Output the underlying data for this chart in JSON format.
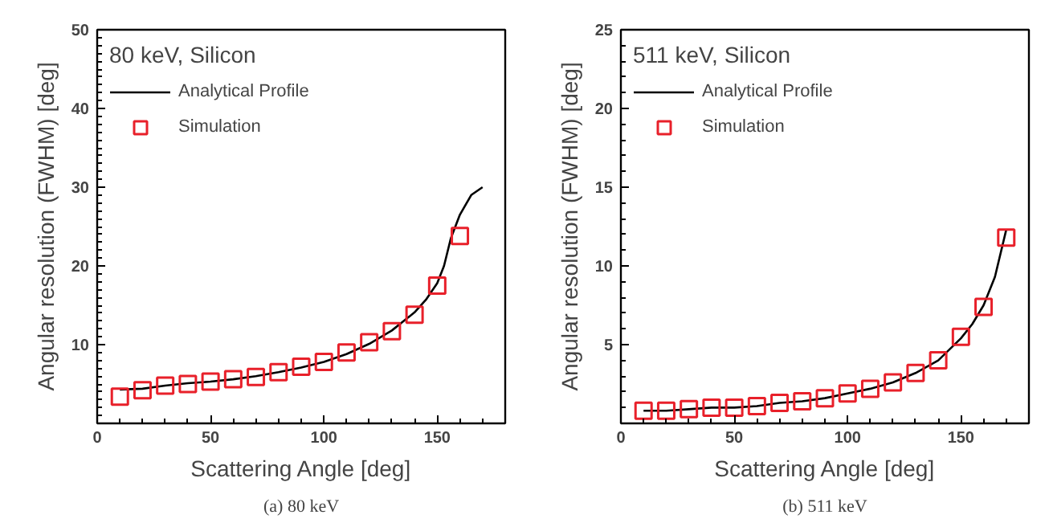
{
  "chart_data": [
    {
      "type": "line",
      "legend_title": "80 keV, Silicon",
      "xlabel": "Scattering Angle [deg]",
      "ylabel": "Angular resolution (FWHM) [deg]",
      "annotations": [
        "(a) 80 keV"
      ],
      "xlim": [
        0,
        180
      ],
      "ylim": [
        0,
        50
      ],
      "xticks": [
        0,
        50,
        100,
        150
      ],
      "yticks": [
        10,
        20,
        30,
        40,
        50
      ],
      "legend": "top left",
      "grid": false,
      "series": [
        {
          "name": "Analytical Profile",
          "color": "#000000",
          "x": [
            10,
            20,
            30,
            40,
            50,
            60,
            70,
            80,
            90,
            100,
            110,
            120,
            130,
            140,
            145,
            150,
            153,
            156,
            160,
            165,
            170
          ],
          "values": [
            4.3,
            4.4,
            4.8,
            5.1,
            5.3,
            5.6,
            6.0,
            6.5,
            7.1,
            7.8,
            8.8,
            10.1,
            11.8,
            14.1,
            15.7,
            17.8,
            20,
            23.5,
            26.5,
            29,
            30
          ]
        },
        {
          "name": "Simulation",
          "type": "scatter",
          "marker": "square",
          "color": "#e8202a",
          "x": [
            10,
            20,
            30,
            40,
            50,
            60,
            70,
            80,
            90,
            100,
            110,
            120,
            130,
            140,
            150,
            160
          ],
          "values": [
            3.4,
            4.2,
            4.8,
            5.0,
            5.3,
            5.6,
            5.9,
            6.5,
            7.2,
            7.8,
            9.0,
            10.3,
            11.7,
            13.8,
            17.5,
            23.8
          ]
        }
      ]
    },
    {
      "type": "line",
      "legend_title": "511 keV, Silicon",
      "xlabel": "Scattering Angle [deg]",
      "ylabel": "Angular resolution (FWHM) [deg]",
      "annotations": [
        "(b) 511 keV"
      ],
      "xlim": [
        0,
        180
      ],
      "ylim": [
        0,
        25
      ],
      "xticks": [
        0,
        50,
        100,
        150
      ],
      "yticks": [
        5,
        10,
        15,
        20,
        25
      ],
      "legend": "top left",
      "grid": false,
      "series": [
        {
          "name": "Analytical Profile",
          "color": "#000000",
          "x": [
            10,
            20,
            30,
            40,
            50,
            60,
            70,
            80,
            90,
            100,
            110,
            120,
            130,
            140,
            150,
            155,
            160,
            165,
            170
          ],
          "values": [
            0.8,
            0.8,
            0.9,
            1.0,
            1.0,
            1.1,
            1.3,
            1.4,
            1.6,
            1.9,
            2.2,
            2.6,
            3.2,
            4.0,
            5.4,
            6.3,
            7.5,
            9.3,
            12.3
          ]
        },
        {
          "name": "Simulation",
          "type": "scatter",
          "marker": "square",
          "color": "#e8202a",
          "x": [
            10,
            20,
            30,
            40,
            50,
            60,
            70,
            80,
            90,
            100,
            110,
            120,
            130,
            140,
            150,
            160,
            170
          ],
          "values": [
            0.8,
            0.8,
            0.9,
            1.0,
            1.0,
            1.1,
            1.3,
            1.4,
            1.6,
            1.9,
            2.2,
            2.6,
            3.2,
            4.0,
            5.5,
            7.4,
            11.8
          ]
        }
      ]
    }
  ]
}
